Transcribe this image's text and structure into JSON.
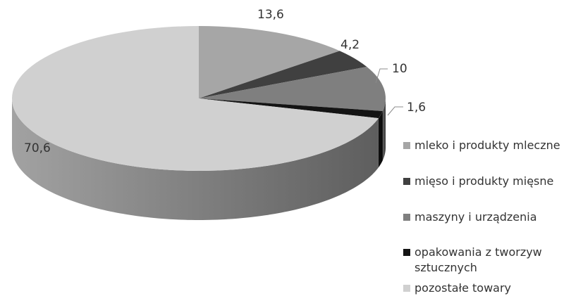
{
  "chart_data": {
    "type": "pie",
    "title": "",
    "categories": [
      "mleko i produkty mleczne",
      "mięso i produkty mięsne",
      "maszyny i urządzenia",
      "opakowania z tworzyw sztucznych",
      "pozostałe towary"
    ],
    "values": [
      13.6,
      4.2,
      10,
      1.6,
      70.6
    ],
    "data_labels": [
      "13,6",
      "4,2",
      "10",
      "1,6",
      "70,6"
    ],
    "colors": [
      "#a6a6a6",
      "#404040",
      "#7f7f7f",
      "#141414",
      "#d0d0d0"
    ],
    "legend_position": "right",
    "style": "3d"
  }
}
